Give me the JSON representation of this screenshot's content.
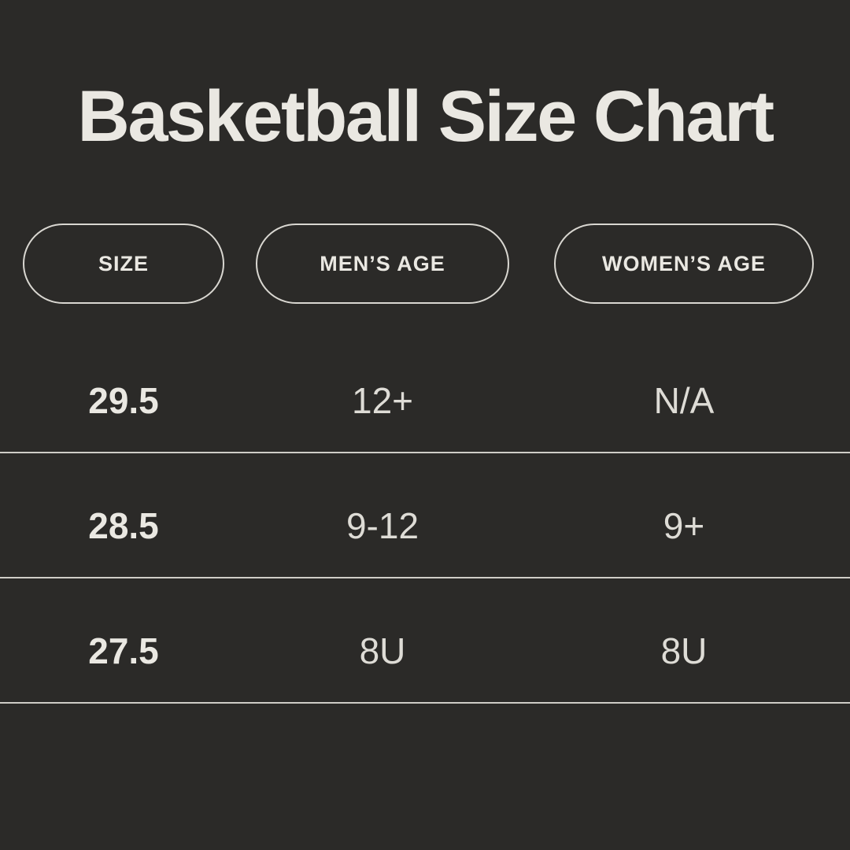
{
  "title": "Basketball Size Chart",
  "colors": {
    "background": "#2b2a28",
    "text_primary": "#eae8e2",
    "text_cell": "#dedcd6",
    "outline": "#d9d7d1",
    "divider": "#cfcdc7"
  },
  "table": {
    "columns": [
      {
        "label": "SIZE"
      },
      {
        "label": "MEN’S AGE"
      },
      {
        "label": "WOMEN’S AGE"
      }
    ],
    "rows": [
      {
        "size": "29.5",
        "mens_age": "12+",
        "womens_age": "N/A"
      },
      {
        "size": "28.5",
        "mens_age": "9-12",
        "womens_age": "9+"
      },
      {
        "size": "27.5",
        "mens_age": "8U",
        "womens_age": "8U"
      }
    ]
  },
  "chart_data": {
    "type": "table",
    "title": "Basketball Size Chart",
    "columns": [
      "SIZE",
      "MEN’S AGE",
      "WOMEN’S AGE"
    ],
    "rows": [
      [
        "29.5",
        "12+",
        "N/A"
      ],
      [
        "28.5",
        "9-12",
        "9+"
      ],
      [
        "27.5",
        "8U",
        "8U"
      ]
    ]
  }
}
